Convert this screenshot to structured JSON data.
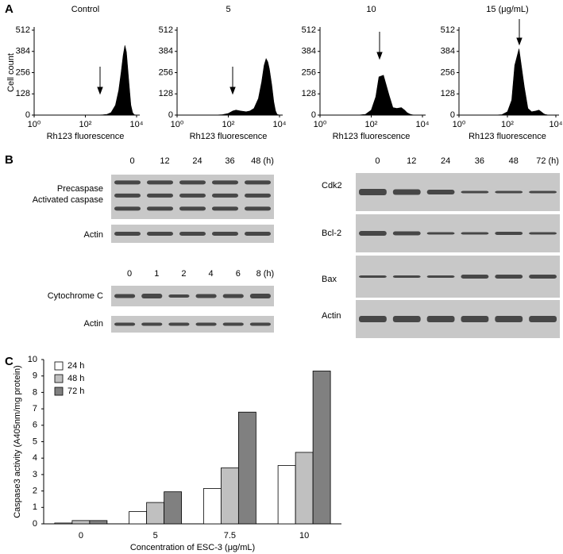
{
  "panel_labels": [
    "A",
    "B",
    "C"
  ],
  "chart_data": [
    {
      "type": "area",
      "title": "Control",
      "y_label": "Cell count",
      "x_label": "Rh123 fluorescence",
      "log_x": true,
      "color": "#000000",
      "x": [
        1,
        3,
        10,
        30,
        60,
        100,
        150,
        200,
        300,
        500,
        700,
        1000,
        1500,
        2000,
        2500,
        3000,
        3500,
        4000,
        5000,
        6000,
        7000,
        8000,
        10000
      ],
      "values": [
        0,
        0,
        0,
        0,
        0,
        0,
        0,
        0,
        0,
        2,
        5,
        15,
        60,
        150,
        260,
        360,
        420,
        380,
        200,
        60,
        15,
        3,
        0
      ],
      "xlim": [
        1,
        10000
      ],
      "xticks": [
        {
          "value": 1,
          "label": "10⁰"
        },
        {
          "value": 100,
          "label": "10²"
        },
        {
          "value": 10000,
          "label": "10⁴"
        }
      ],
      "ylim": [
        0,
        512
      ],
      "yticks": [
        0,
        128,
        256,
        384,
        512
      ]
    },
    {
      "type": "area",
      "title": "5",
      "x_label": "Rh123 fluorescence",
      "log_x": true,
      "color": "#000000",
      "x": [
        1,
        3,
        10,
        30,
        60,
        100,
        150,
        200,
        300,
        500,
        700,
        1000,
        1500,
        2000,
        2500,
        3000,
        3500,
        4000,
        5000,
        6000,
        7000,
        8000,
        10000
      ],
      "values": [
        0,
        0,
        0,
        0,
        3,
        10,
        25,
        30,
        25,
        20,
        25,
        40,
        100,
        200,
        300,
        340,
        320,
        280,
        180,
        80,
        25,
        5,
        0
      ],
      "xlim": [
        1,
        10000
      ],
      "xticks": [
        {
          "value": 1,
          "label": "10⁰"
        },
        {
          "value": 100,
          "label": "10²"
        },
        {
          "value": 10000,
          "label": "10⁴"
        }
      ],
      "ylim": [
        0,
        512
      ],
      "yticks": [
        0,
        128,
        256,
        384,
        512
      ]
    },
    {
      "type": "area",
      "title": "10",
      "x_label": "Rh123 fluorescence",
      "log_x": true,
      "color": "#000000",
      "x": [
        1,
        3,
        10,
        30,
        60,
        100,
        150,
        200,
        300,
        500,
        700,
        1000,
        1500,
        2000,
        2500,
        3000,
        3500,
        4000,
        5000,
        6000,
        7000,
        8000,
        10000
      ],
      "values": [
        0,
        0,
        0,
        0,
        5,
        30,
        110,
        230,
        240,
        120,
        45,
        40,
        45,
        30,
        15,
        8,
        4,
        2,
        0,
        0,
        0,
        0,
        0
      ],
      "xlim": [
        1,
        10000
      ],
      "xticks": [
        {
          "value": 1,
          "label": "10⁰"
        },
        {
          "value": 100,
          "label": "10²"
        },
        {
          "value": 10000,
          "label": "10⁴"
        }
      ],
      "ylim": [
        0,
        512
      ],
      "yticks": [
        0,
        128,
        256,
        384,
        512
      ]
    },
    {
      "type": "area",
      "title": "15 (μg/mL)",
      "x_label": "Rh123 fluorescence",
      "log_x": true,
      "color": "#000000",
      "x": [
        1,
        3,
        10,
        30,
        60,
        100,
        150,
        200,
        300,
        500,
        700,
        1000,
        1500,
        2000,
        2500,
        3000,
        3500,
        4000,
        5000,
        6000,
        7000,
        8000,
        10000
      ],
      "values": [
        0,
        0,
        0,
        0,
        3,
        20,
        90,
        300,
        400,
        170,
        40,
        20,
        25,
        30,
        20,
        10,
        5,
        3,
        0,
        0,
        0,
        0,
        0
      ],
      "xlim": [
        1,
        10000
      ],
      "xticks": [
        {
          "value": 1,
          "label": "10⁰"
        },
        {
          "value": 100,
          "label": "10²"
        },
        {
          "value": 10000,
          "label": "10⁴"
        }
      ],
      "ylim": [
        0,
        512
      ],
      "yticks": [
        0,
        128,
        256,
        384,
        512
      ]
    },
    {
      "type": "bar",
      "x_label": "Concentration of ESC-3 (μg/mL)",
      "y_label": "Caspase3 activity (A405nm/mg protein)",
      "categories": [
        "0",
        "5",
        "7.5",
        "10"
      ],
      "legend": "upper-left",
      "series": [
        {
          "name": "24 h",
          "color": "#ffffff",
          "values": [
            0.05,
            0.75,
            2.15,
            3.55
          ]
        },
        {
          "name": "48 h",
          "color": "#c0c0c0",
          "values": [
            0.2,
            1.3,
            3.4,
            4.35
          ]
        },
        {
          "name": "72 h",
          "color": "#808080",
          "values": [
            0.2,
            1.95,
            6.8,
            9.3
          ]
        }
      ],
      "ylim": [
        0,
        10
      ],
      "yticks": [
        0,
        1,
        2,
        3,
        4,
        5,
        6,
        7,
        8,
        9,
        10
      ]
    }
  ],
  "blots": [
    {
      "times": [
        "0",
        "12",
        "24",
        "36",
        "48 (h)"
      ],
      "rows": [
        "Precaspase",
        "Activated caspase",
        "Actin"
      ]
    },
    {
      "times": [
        "0",
        "1",
        "2",
        "4",
        "6",
        "8 (h)"
      ],
      "rows": [
        "Cytochrome C",
        "Actin"
      ]
    },
    {
      "times": [
        "0",
        "12",
        "24",
        "36",
        "48",
        "72 (h)"
      ],
      "rows": [
        "Cdk2",
        "Bcl-2",
        "Bax",
        "Actin"
      ]
    }
  ]
}
